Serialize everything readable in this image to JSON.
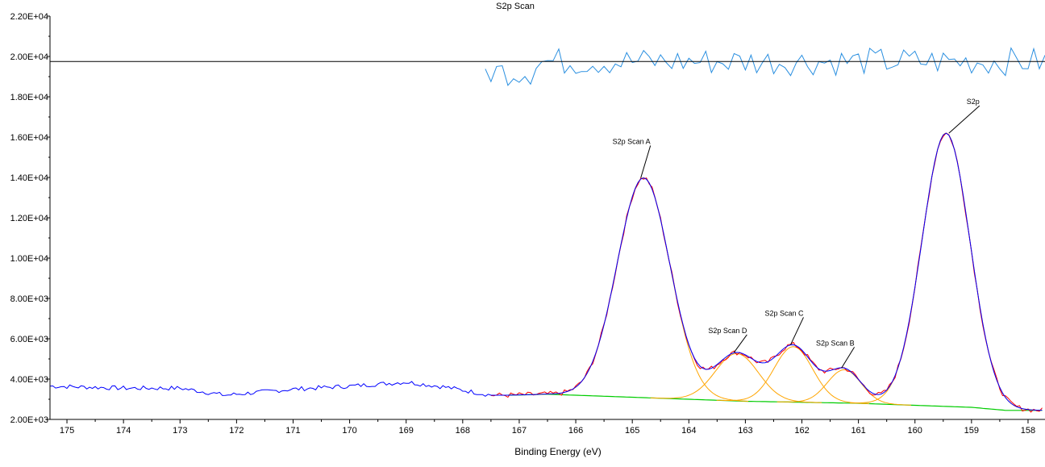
{
  "chart_data": {
    "type": "line",
    "title": "S2p Scan",
    "xlabel": "Binding Energy (eV)",
    "ylabel": "",
    "x_reversed": true,
    "xlim": [
      175.3,
      157.7
    ],
    "ylim": [
      2000,
      22000
    ],
    "x_ticks": [
      "175",
      "174",
      "173",
      "172",
      "171",
      "170",
      "169",
      "168",
      "167",
      "166",
      "165",
      "164",
      "163",
      "162",
      "161",
      "160",
      "159",
      "158"
    ],
    "y_ticks": [
      "2.00E+03",
      "4.00E+03",
      "6.00E+03",
      "8.00E+03",
      "1.00E+04",
      "1.20E+04",
      "1.40E+04",
      "1.60E+04",
      "1.80E+04",
      "2.00E+04",
      "2.20E+04"
    ],
    "residual_baseline": 19750,
    "peaks": [
      {
        "name": "S2p Scan A",
        "center": 164.8,
        "height": 10900,
        "fwhm": 1.1
      },
      {
        "name": "S2p Scan D",
        "center": 163.15,
        "height": 2350,
        "fwhm": 0.9
      },
      {
        "name": "S2p Scan C",
        "center": 162.15,
        "height": 2750,
        "fwhm": 0.8
      },
      {
        "name": "S2p Scan B",
        "center": 161.25,
        "height": 1650,
        "fwhm": 0.7
      },
      {
        "name": "S2p",
        "center": 159.45,
        "height": 13550,
        "fwhm": 1.0
      }
    ],
    "background": {
      "x": [
        175.3,
        167.2,
        166.5,
        165,
        163,
        161,
        159,
        158.4,
        157.7
      ],
      "y": [
        3200,
        3200,
        3250,
        3100,
        2900,
        2800,
        2600,
        2450,
        2450
      ]
    },
    "raw_scan_region": {
      "x": [
        175.3,
        174,
        173,
        172.2,
        171,
        170,
        169,
        168.3,
        167.5
      ],
      "y": [
        3650,
        3550,
        3550,
        3200,
        3500,
        3650,
        3850,
        3600,
        3200
      ]
    },
    "colors": {
      "raw": "#ff0000",
      "envelope": "#0000ff",
      "components": "#ffa500",
      "background": "#00cc00",
      "residual": "#2a8fe0",
      "axis": "#000000"
    }
  }
}
